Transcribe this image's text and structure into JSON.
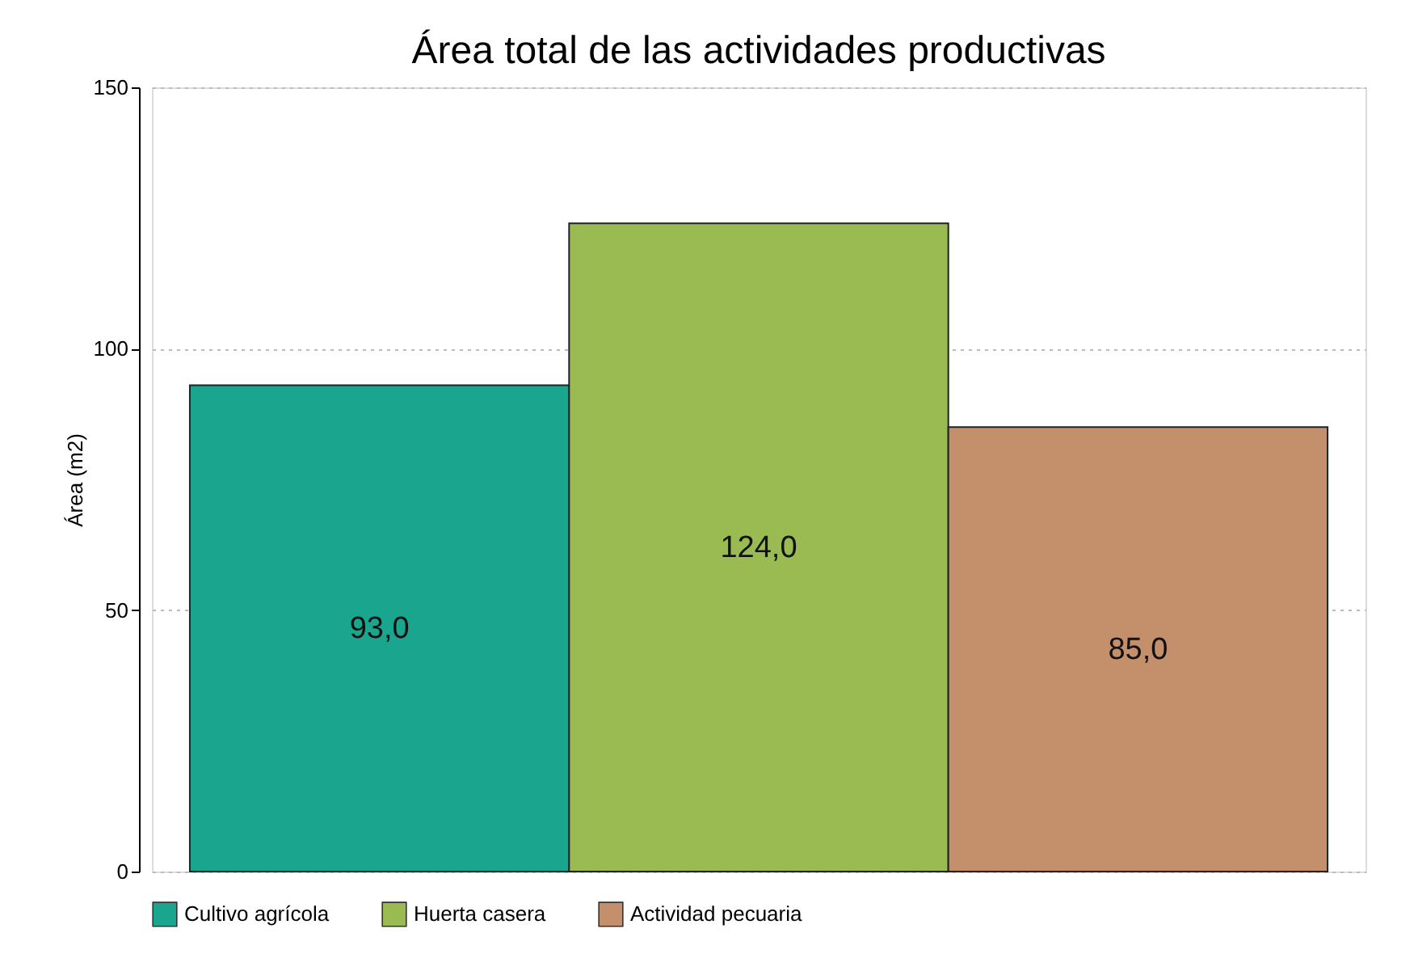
{
  "chart_data": {
    "type": "bar",
    "title": "Área total de las actividades productivas",
    "ylabel": "Área (m2)",
    "categories": [
      null,
      null,
      null
    ],
    "series": [
      {
        "name": "Cultivo agrícola",
        "color": "#1aa68e",
        "values": [
          93,
          null,
          null
        ],
        "value_labels": [
          "93,0",
          null,
          null
        ]
      },
      {
        "name": "Huerta casera",
        "color": "#9aba52",
        "values": [
          null,
          124,
          null
        ],
        "value_labels": [
          null,
          "124,0",
          null
        ]
      },
      {
        "name": "Actividad pecuaria",
        "color": "#c4906b",
        "values": [
          null,
          null,
          85
        ],
        "value_labels": [
          null,
          null,
          "85,0"
        ]
      }
    ],
    "ylim": [
      0,
      150
    ],
    "yticks": [
      0,
      50,
      100,
      150
    ],
    "grid": "y",
    "legend": "bottom"
  }
}
